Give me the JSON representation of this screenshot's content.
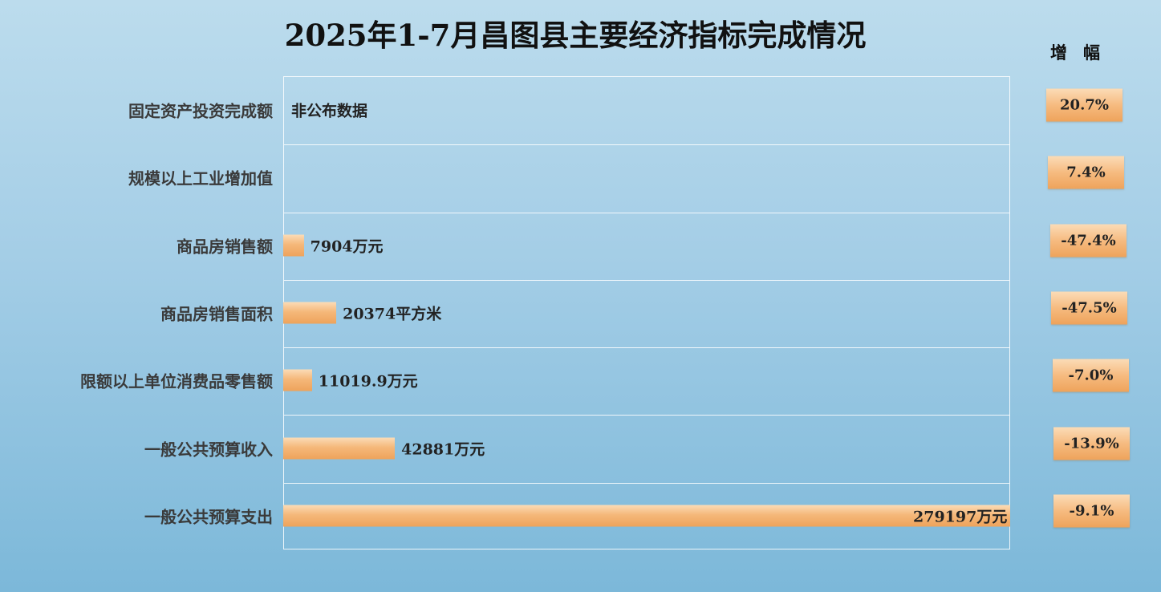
{
  "title": "2025年1-7月昌图县主要经济指标完成情况",
  "growth_header": "增幅",
  "chart_data": {
    "type": "bar",
    "orientation": "horizontal",
    "title": "2025年1-7月昌图县主要经济指标完成情况",
    "categories": [
      "固定资产投资完成额",
      "规模以上工业增加值",
      "商品房销售额",
      "商品房销售面积",
      "限额以上单位消费品零售额",
      "一般公共预算收入",
      "一般公共预算支出"
    ],
    "values": [
      null,
      null,
      7904,
      20374,
      11019.9,
      42881,
      279197
    ],
    "value_labels": [
      "非公布数据",
      "",
      "7904万元",
      "20374平方米",
      "11019.9万元",
      "42881万元",
      "279197万元"
    ],
    "growth": [
      "20.7%",
      "7.4%",
      "-47.4%",
      "-47.5%",
      "-7.0%",
      "-13.9%",
      "-9.1%"
    ],
    "xlim": [
      0,
      279197
    ],
    "grid": true,
    "bar_color": "#f3b272"
  }
}
